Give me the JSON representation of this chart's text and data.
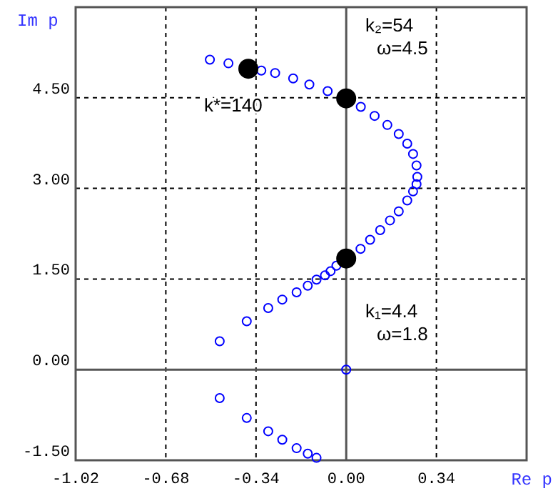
{
  "chart_data": {
    "type": "scatter",
    "xlabel": "Re p",
    "ylabel": "Im p",
    "xlim": [
      -1.02,
      0.68
    ],
    "ylim": [
      -1.5,
      6.0
    ],
    "xticks": [
      {
        "value": -1.02,
        "label": "-1.02"
      },
      {
        "value": -0.68,
        "label": "-0.68"
      },
      {
        "value": -0.34,
        "label": "-0.34"
      },
      {
        "value": 0,
        "label": "0.00"
      },
      {
        "value": 0.34,
        "label": "0.34"
      }
    ],
    "yticks": [
      {
        "value": -1.5,
        "label": "-1.50"
      },
      {
        "value": 0,
        "label": "0.00"
      },
      {
        "value": 1.5,
        "label": "1.50"
      },
      {
        "value": 3,
        "label": "3.00"
      },
      {
        "value": 4.5,
        "label": "4.50"
      }
    ],
    "grid": true,
    "marker": "circle",
    "series": [
      {
        "color": "#0000ff",
        "x": [
          0,
          -0.477,
          -0.375,
          -0.294,
          -0.241,
          -0.187,
          -0.145,
          -0.112,
          -0.08,
          -0.059,
          -0.037,
          0.054,
          0.09,
          0.128,
          0.165,
          0.198,
          0.23,
          0.252,
          0.265,
          0.268,
          0.265,
          0.252,
          0.23,
          0.198,
          0.155,
          0.107,
          0.055,
          -0.07,
          -0.139,
          -0.2,
          -0.268,
          -0.32,
          -0.444,
          -0.514,
          -0.477,
          -0.375,
          -0.294,
          -0.241,
          -0.187,
          -0.145,
          -0.112
        ],
        "values": [
          0,
          0.47,
          0.8,
          1.02,
          1.16,
          1.28,
          1.39,
          1.49,
          1.56,
          1.63,
          1.72,
          2.0,
          2.15,
          2.31,
          2.47,
          2.62,
          2.8,
          2.95,
          3.07,
          3.19,
          3.38,
          3.57,
          3.74,
          3.9,
          4.05,
          4.2,
          4.35,
          4.61,
          4.72,
          4.82,
          4.91,
          4.95,
          5.07,
          5.13,
          -0.47,
          -0.8,
          -1.02,
          -1.16,
          -1.3,
          -1.39,
          -1.46
        ]
      },
      {
        "color": "#000000",
        "x": [
          0,
          0,
          -0.369
        ],
        "values": [
          1.84,
          4.49,
          4.98
        ]
      }
    ],
    "annotations": [
      "k₁=4.4\nω=1.8",
      "k₂=54\nω=4.5",
      "k*=140"
    ]
  }
}
